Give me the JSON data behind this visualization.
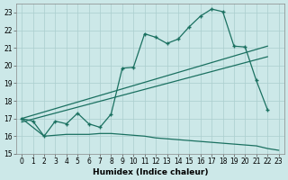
{
  "xlabel": "Humidex (Indice chaleur)",
  "bg_color": "#cce8e8",
  "line_color": "#1a7060",
  "grid_color": "#aacece",
  "xlim": [
    -0.5,
    23.5
  ],
  "ylim": [
    15.0,
    23.5
  ],
  "yticks": [
    15,
    16,
    17,
    18,
    19,
    20,
    21,
    22,
    23
  ],
  "xticks": [
    0,
    1,
    2,
    3,
    4,
    5,
    6,
    7,
    8,
    9,
    10,
    11,
    12,
    13,
    14,
    15,
    16,
    17,
    18,
    19,
    20,
    21,
    22,
    23
  ],
  "main_curve_x": [
    0,
    1,
    2,
    3,
    4,
    5,
    6,
    7,
    8,
    9,
    10,
    11,
    12,
    13,
    14,
    15,
    16,
    17,
    18,
    19,
    20,
    21,
    22
  ],
  "main_curve_y": [
    17.0,
    16.85,
    16.0,
    16.85,
    16.7,
    17.3,
    16.7,
    16.5,
    17.25,
    19.85,
    19.9,
    21.8,
    21.6,
    21.25,
    21.5,
    22.2,
    22.8,
    23.2,
    23.05,
    21.1,
    21.05,
    19.15,
    17.5
  ],
  "trend_line1_x": [
    0,
    22
  ],
  "trend_line1_y": [
    17.0,
    21.1
  ],
  "trend_line2_x": [
    0,
    22
  ],
  "trend_line2_y": [
    16.8,
    20.5
  ],
  "lower_line_x": [
    0,
    2,
    3,
    4,
    5,
    6,
    7,
    8,
    9,
    10,
    11,
    12,
    13,
    14,
    15,
    16,
    17,
    18,
    19,
    20,
    21,
    22,
    23
  ],
  "lower_line_y": [
    17.0,
    16.0,
    16.05,
    16.1,
    16.1,
    16.1,
    16.15,
    16.15,
    16.1,
    16.05,
    16.0,
    15.9,
    15.85,
    15.8,
    15.75,
    15.7,
    15.65,
    15.6,
    15.55,
    15.5,
    15.45,
    15.3,
    15.2
  ]
}
